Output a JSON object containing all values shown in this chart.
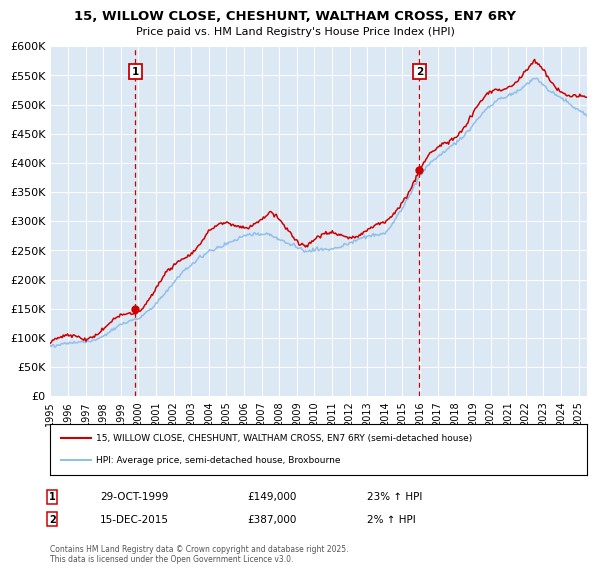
{
  "title": "15, WILLOW CLOSE, CHESHUNT, WALTHAM CROSS, EN7 6RY",
  "subtitle": "Price paid vs. HM Land Registry's House Price Index (HPI)",
  "ylim": [
    0,
    600000
  ],
  "yticks": [
    0,
    50000,
    100000,
    150000,
    200000,
    250000,
    300000,
    350000,
    400000,
    450000,
    500000,
    550000,
    600000
  ],
  "plot_bg_color": "#dce9f5",
  "hpi_color": "#92bfe8",
  "price_color": "#cc0000",
  "sale1_year": 1999.83,
  "sale2_year": 2015.96,
  "sale1_price": 149000,
  "sale2_price": 387000,
  "sale1_date": "29-OCT-1999",
  "sale2_date": "15-DEC-2015",
  "sale1_hpi_pct": "23% ↑ HPI",
  "sale2_hpi_pct": "2% ↑ HPI",
  "legend_label1": "15, WILLOW CLOSE, CHESHUNT, WALTHAM CROSS, EN7 6RY (semi-detached house)",
  "legend_label2": "HPI: Average price, semi-detached house, Broxbourne",
  "footer": "Contains HM Land Registry data © Crown copyright and database right 2025.\nThis data is licensed under the Open Government Licence v3.0.",
  "xmin": 1995,
  "xmax": 2025.5
}
